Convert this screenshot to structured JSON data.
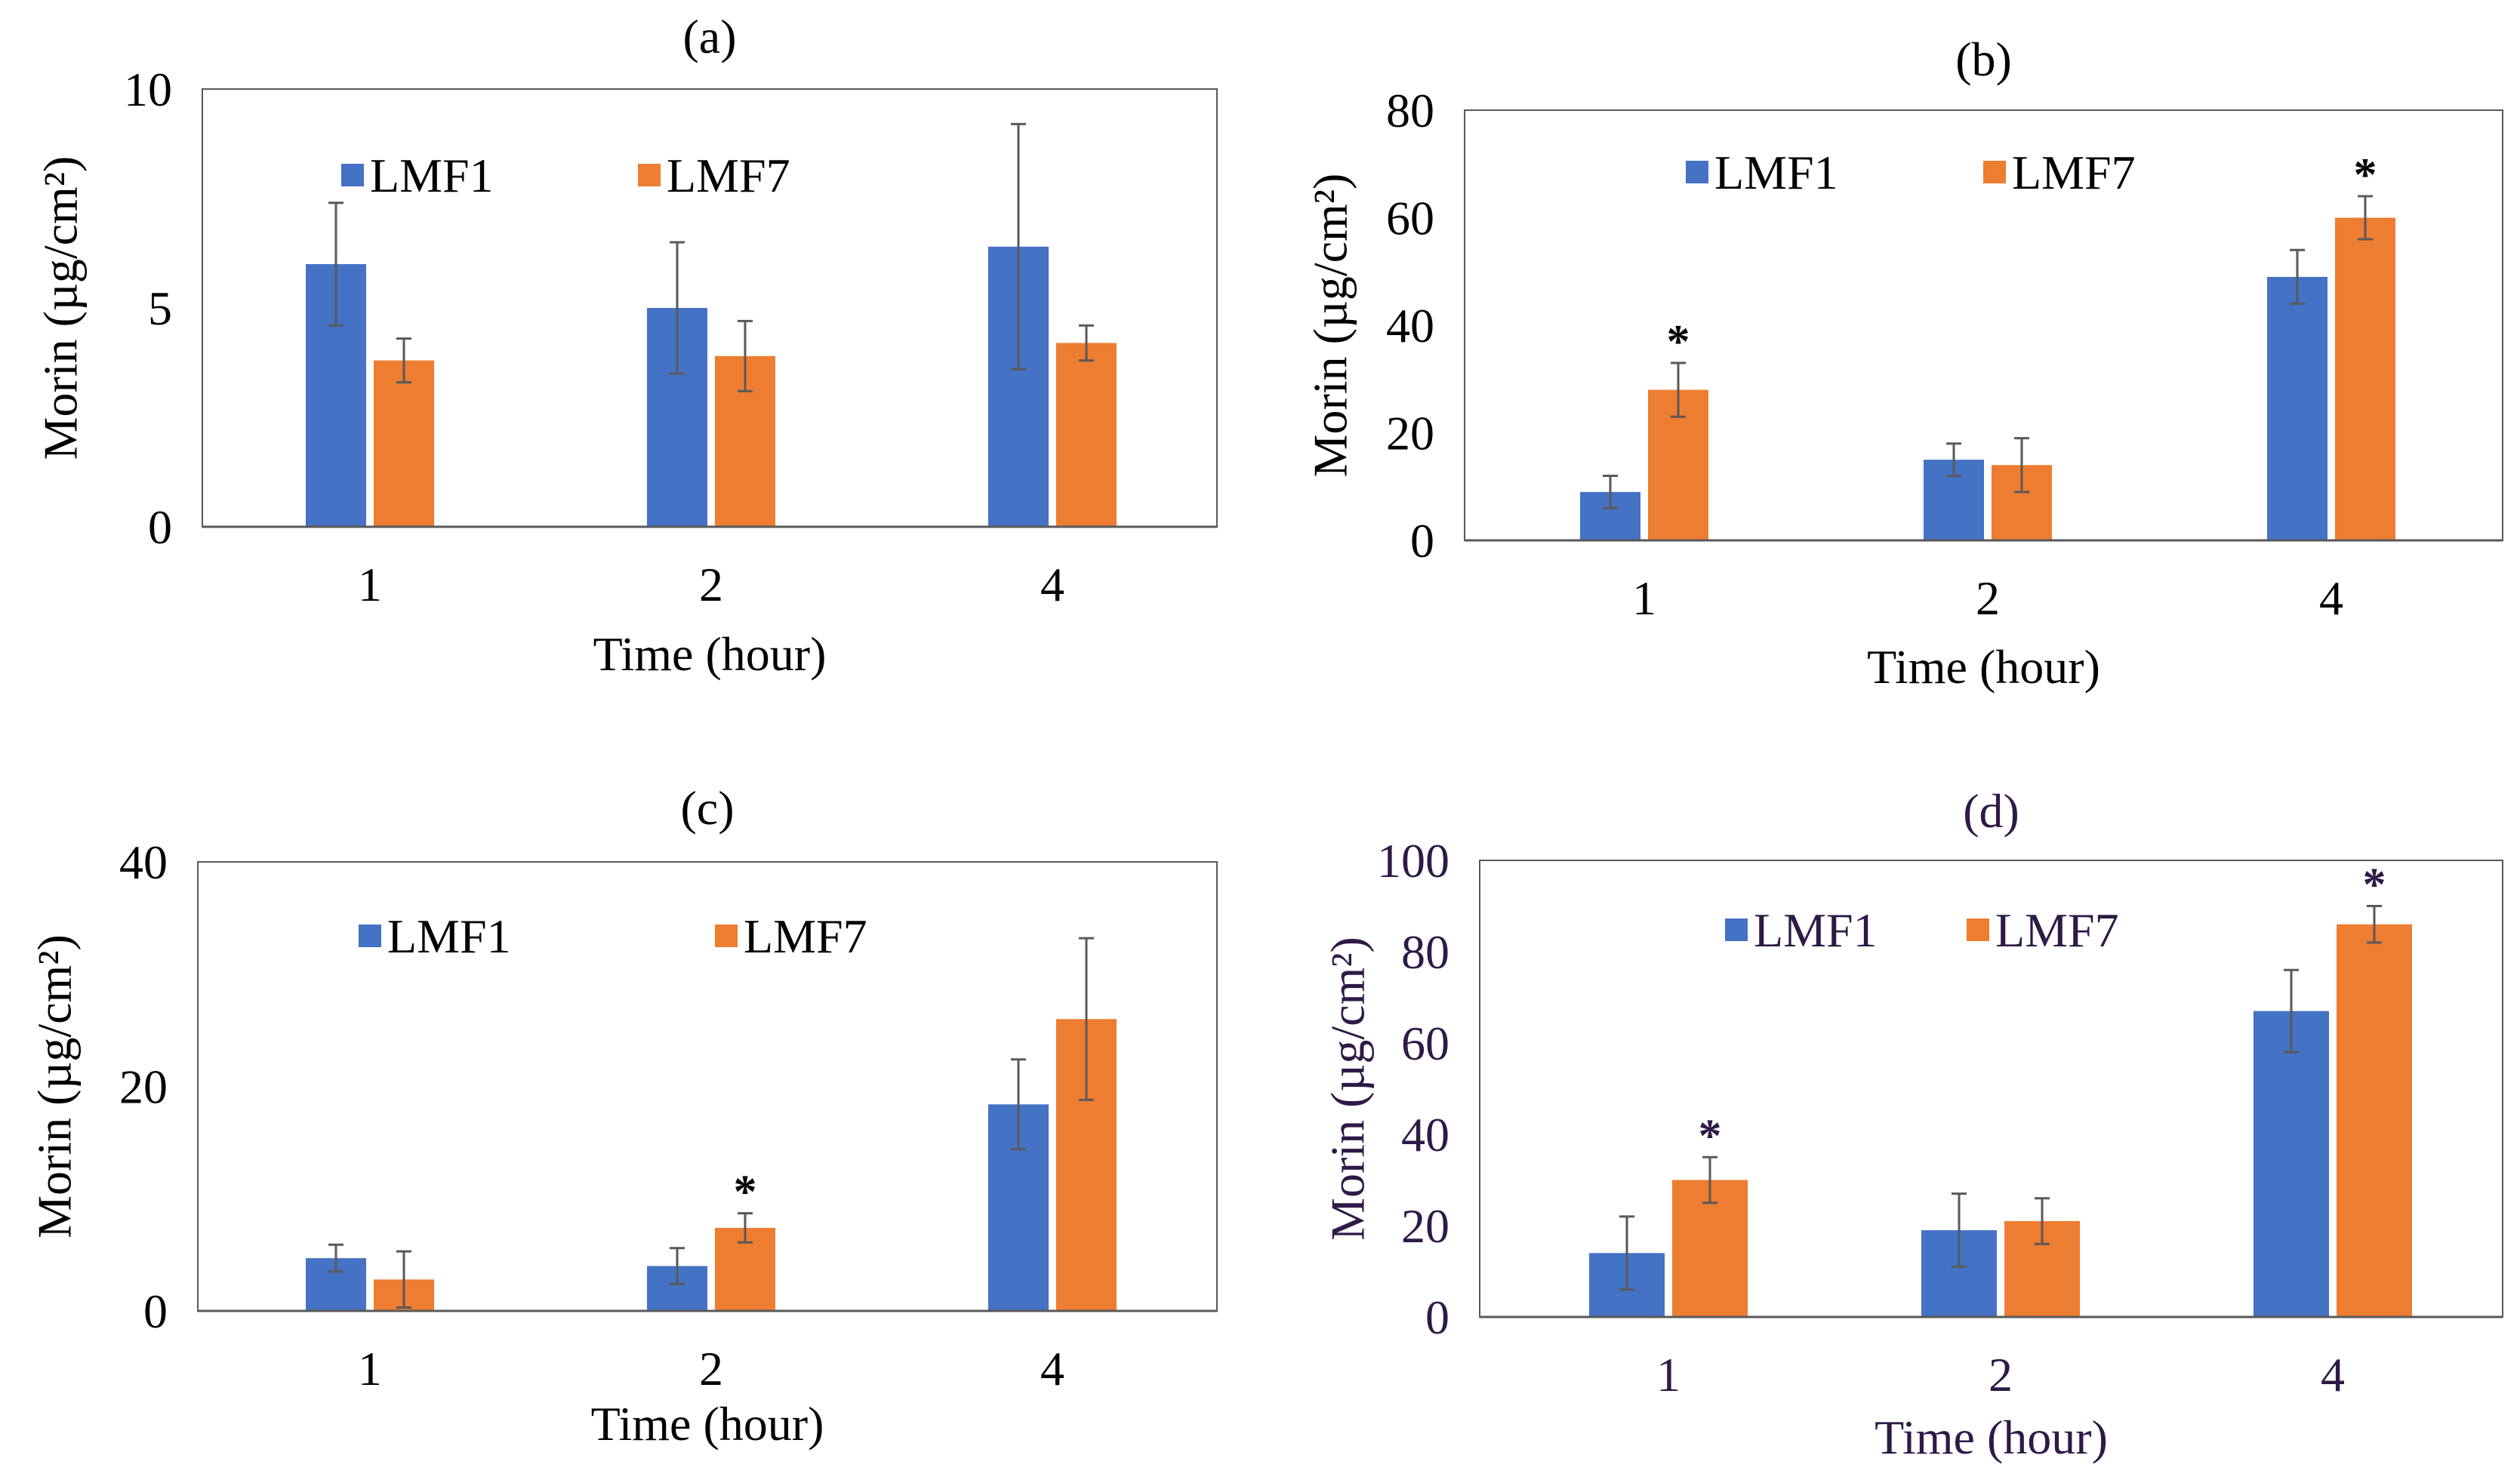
{
  "figure": {
    "colors": {
      "LMF1": "#4472c4",
      "LMF7": "#ed7d31",
      "axis": "#595959",
      "errorbar": "#595959",
      "text_default": "#000000",
      "text_d": "#2e1a47"
    }
  },
  "chart_data": [
    {
      "type": "bar",
      "title": "(a)",
      "xlabel": "Time (hour)",
      "ylabel": "Morin (µg/cm²)",
      "categories": [
        "1",
        "2",
        "4"
      ],
      "ylim": [
        0,
        10
      ],
      "yticks": [
        0,
        5,
        10
      ],
      "legend": "top-left",
      "series": [
        {
          "name": "LMF1",
          "values": [
            6.0,
            5.0,
            6.4
          ],
          "errors": [
            1.4,
            1.5,
            2.8
          ]
        },
        {
          "name": "LMF7",
          "values": [
            3.8,
            3.9,
            4.2
          ],
          "errors": [
            0.5,
            0.8,
            0.4
          ]
        }
      ],
      "significance": []
    },
    {
      "type": "bar",
      "title": "(b)",
      "xlabel": "Time (hour)",
      "ylabel": "Morin (µg/cm²)",
      "categories": [
        "1",
        "2",
        "4"
      ],
      "ylim": [
        0,
        80
      ],
      "yticks": [
        0,
        20,
        40,
        60,
        80
      ],
      "legend": "top-left",
      "series": [
        {
          "name": "LMF1",
          "values": [
            9,
            15,
            49
          ],
          "errors": [
            3,
            3,
            5
          ]
        },
        {
          "name": "LMF7",
          "values": [
            28,
            14,
            60
          ],
          "errors": [
            5,
            5,
            4
          ]
        }
      ],
      "significance": [
        {
          "series": "LMF7",
          "category": "1",
          "mark": "*"
        },
        {
          "series": "LMF7",
          "category": "4",
          "mark": "*"
        }
      ]
    },
    {
      "type": "bar",
      "title": "(c)",
      "xlabel": "Time (hour)",
      "ylabel": "Morin (µg/cm²)",
      "categories": [
        "1",
        "2",
        "4"
      ],
      "ylim": [
        0,
        40
      ],
      "yticks": [
        0,
        20,
        40
      ],
      "legend": "top-left",
      "series": [
        {
          "name": "LMF1",
          "values": [
            4.7,
            4.0,
            18.4
          ],
          "errors": [
            1.2,
            1.6,
            4.0
          ]
        },
        {
          "name": "LMF7",
          "values": [
            2.8,
            7.4,
            26.0
          ],
          "errors": [
            2.5,
            1.3,
            7.2
          ]
        }
      ],
      "significance": [
        {
          "series": "LMF7",
          "category": "2",
          "mark": "*"
        }
      ]
    },
    {
      "type": "bar",
      "title": "(d)",
      "xlabel": "Time (hour)",
      "ylabel": "Morin (µg/cm²)",
      "categories": [
        "1",
        "2",
        "4"
      ],
      "ylim": [
        0,
        100
      ],
      "yticks": [
        0,
        20,
        40,
        60,
        80,
        100
      ],
      "legend": "top-left",
      "series": [
        {
          "name": "LMF1",
          "values": [
            14,
            19,
            67
          ],
          "errors": [
            8,
            8,
            9
          ]
        },
        {
          "name": "LMF7",
          "values": [
            30,
            21,
            86
          ],
          "errors": [
            5,
            5,
            4
          ]
        }
      ],
      "significance": [
        {
          "series": "LMF7",
          "category": "1",
          "mark": "*"
        },
        {
          "series": "LMF7",
          "category": "4",
          "mark": "*"
        }
      ]
    }
  ]
}
